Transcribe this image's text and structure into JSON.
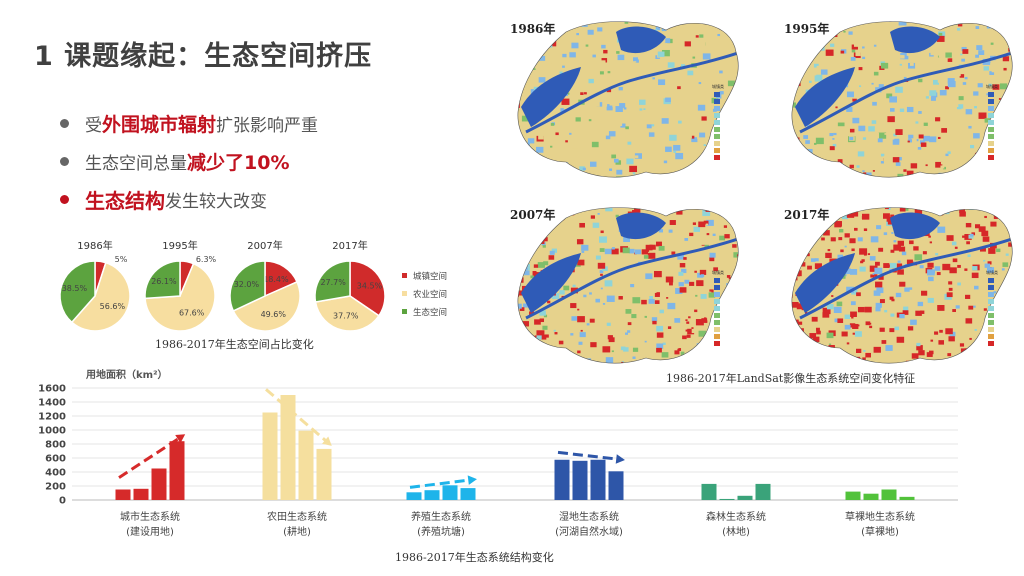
{
  "title": "1 课题缘起：生态空间挤压",
  "bullets": [
    {
      "pre": "受",
      "hl": "外围城市辐射",
      "post": "扩张影响严重"
    },
    {
      "pre": "生态空间总量",
      "hl": "减少了10%",
      "post": ""
    },
    {
      "pre": "",
      "hl": "生态结构",
      "post": "发生较大改变"
    }
  ],
  "maps": {
    "labels": [
      "1986年",
      "1995年",
      "2007年",
      "2017年"
    ],
    "caption": "1986-2017年LandSat影像生态系统空间变化特征",
    "legend_title": "城镇类",
    "colors": {
      "urban": "#d62728",
      "farm": "#e6d28c",
      "water": "#2f5bb7",
      "wetland": "#7fb6e8",
      "green": "#7fbf6a",
      "cyan": "#8fd4d8"
    }
  },
  "pie_caption": "1986-2017年生态空间占比变化",
  "bar_caption": "1986-2017年生态系统结构变化",
  "chart_data": [
    {
      "type": "pie",
      "years": [
        "1986年",
        "1995年",
        "2007年",
        "2017年"
      ],
      "legend": [
        "城镇空间",
        "农业空间",
        "生态空间"
      ],
      "colors": [
        "#d02b2b",
        "#f7deA0",
        "#5ca33f"
      ],
      "series": [
        {
          "name": "1986年",
          "labels": [
            "5%",
            "56.6%",
            "38.5%"
          ],
          "values": [
            5,
            56.6,
            38.5
          ]
        },
        {
          "name": "1995年",
          "labels": [
            "6.3%",
            "67.6%",
            "26.1%"
          ],
          "values": [
            6.3,
            67.6,
            26.1
          ]
        },
        {
          "name": "2007年",
          "labels": [
            "18.4%",
            "49.6%",
            "32.0%"
          ],
          "values": [
            18.4,
            49.6,
            32.0
          ]
        },
        {
          "name": "2017年",
          "labels": [
            "34.5%",
            "37.7%",
            "27.7%"
          ],
          "values": [
            34.5,
            37.7,
            27.7
          ]
        }
      ]
    },
    {
      "type": "bar",
      "ylabel": "用地面积（km²）",
      "ylim": [
        0,
        1600
      ],
      "yticks": [
        0,
        200,
        400,
        600,
        800,
        1000,
        1200,
        1400,
        1600
      ],
      "groups": [
        {
          "label": "城市生态系统",
          "sub": "(建设用地)",
          "color": "#d62a2a",
          "values": [
            150,
            160,
            450,
            840
          ],
          "trend": "up"
        },
        {
          "label": "农田生态系统",
          "sub": "(耕地)",
          "color": "#f5df9e",
          "values": [
            1250,
            1500,
            990,
            730
          ],
          "trend": "down"
        },
        {
          "label": "养殖生态系统",
          "sub": "(养殖坑塘)",
          "color": "#1eb4ea",
          "values": [
            110,
            140,
            210,
            170
          ],
          "trend": "up"
        },
        {
          "label": "湿地生态系统",
          "sub": "(河湖自然水域)",
          "color": "#2e56a8",
          "values": [
            575,
            560,
            575,
            410
          ],
          "trend": "down"
        },
        {
          "label": "森林生态系统",
          "sub": "(林地)",
          "color": "#3aa37a",
          "values": [
            230,
            15,
            60,
            230
          ],
          "trend": ""
        },
        {
          "label": "草裸地生态系统",
          "sub": "(草裸地)",
          "color": "#52c23b",
          "values": [
            120,
            90,
            150,
            45
          ],
          "trend": ""
        }
      ]
    }
  ]
}
